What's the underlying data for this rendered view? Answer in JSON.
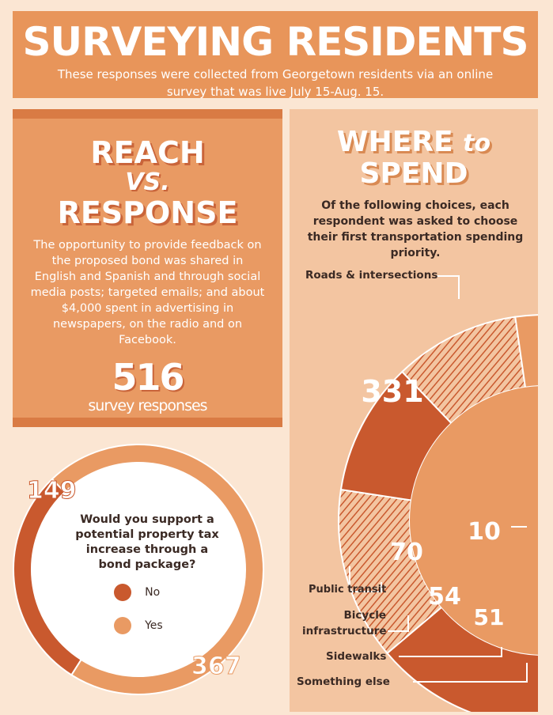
{
  "header": {
    "title": "SURVEYING RESIDENTS",
    "subtitle_line1": "These responses were collected from Georgetown residents via an online",
    "subtitle_line2": "survey that was live July 15-Aug. 15."
  },
  "reach": {
    "title1": "REACH",
    "vs": "VS.",
    "title2": "RESPONSE",
    "body": "The opportunity to provide feedback on the proposed bond was shared in English and Spanish and through social media posts; targeted emails; and about $4,000 spent in advertising in newspapers, on the radio and on Facebook.",
    "count": "516",
    "count_label": "survey responses"
  },
  "spend": {
    "title1": "WHERE",
    "title_to": "to",
    "title2": "SPEND",
    "description": "Of the following choices, each respondent was asked to choose their first transportation spending priority."
  },
  "colors": {
    "dark": "#c9592e",
    "light": "#e99a63",
    "panel": "#f3c5a1",
    "bg": "#fbe6d3"
  },
  "chart_data": [
    {
      "type": "pie",
      "question": "Would you support a potential property tax increase through a bond package?",
      "categories": [
        "No",
        "Yes"
      ],
      "values": [
        149,
        367
      ],
      "legend_placement": "center",
      "colors": [
        "#c9592e",
        "#e99a63"
      ]
    },
    {
      "type": "pie",
      "title": "WHERE to SPEND",
      "categories": [
        "Roads & intersections",
        "Public transit",
        "Bicycle infrastructure",
        "Sidewalks",
        "Something else"
      ],
      "values": [
        331,
        70,
        54,
        51,
        10
      ]
    }
  ]
}
